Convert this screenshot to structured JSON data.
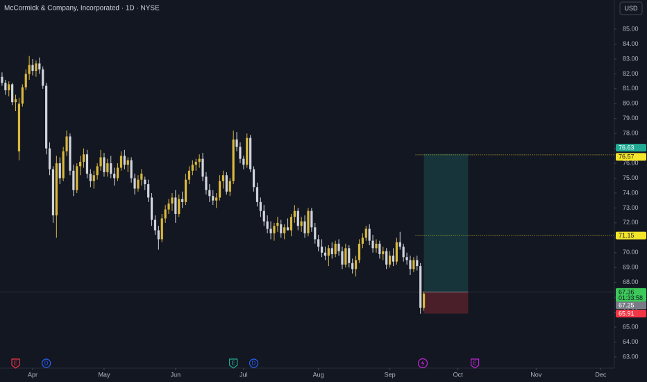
{
  "chart_data": {
    "type": "candlestick",
    "title": "McCormick & Company, Incorporated · 1D · NYSE",
    "currency": "USD",
    "up_color": "#d9b83c",
    "down_color": "#d1d4dc",
    "x": [
      0,
      1,
      2,
      3,
      4,
      5,
      6,
      7,
      8,
      9,
      10,
      11,
      12,
      13,
      14,
      15,
      16,
      17,
      18,
      19,
      20,
      21,
      22,
      23,
      24,
      25,
      26,
      27,
      28,
      29,
      30,
      31,
      32,
      33,
      34,
      35,
      36,
      37,
      38,
      39,
      40,
      41,
      42,
      43,
      44,
      45,
      46,
      47,
      48,
      49,
      50,
      51,
      52,
      53,
      54,
      55,
      56,
      57,
      58,
      59,
      60,
      61,
      62,
      63,
      64,
      65,
      66,
      67,
      68,
      69,
      70,
      71,
      72,
      73,
      74,
      75,
      76,
      77,
      78,
      79,
      80,
      81,
      82,
      83,
      84,
      85,
      86,
      87,
      88,
      89,
      90,
      91,
      92,
      93,
      94,
      95,
      96,
      97,
      98,
      99,
      100,
      101,
      102,
      103,
      104,
      105,
      106,
      107,
      108,
      109,
      110,
      111,
      112,
      113,
      114,
      115,
      116,
      117,
      118,
      119,
      120,
      121,
      122,
      123,
      124
    ],
    "open": [
      81.8,
      81.4,
      80.9,
      81.3,
      80.1,
      76.8,
      80.0,
      81.1,
      82.0,
      82.6,
      82.2,
      82.7,
      82.3,
      81.2,
      77.0,
      75.6,
      72.5,
      76.0,
      75.0,
      76.8,
      77.8,
      75.5,
      74.2,
      75.8,
      76.1,
      76.6,
      75.3,
      74.8,
      75.2,
      75.8,
      76.4,
      75.4,
      76.0,
      75.3,
      75.0,
      75.7,
      76.5,
      75.9,
      76.2,
      75.0,
      74.3,
      74.9,
      74.9,
      74.6,
      73.7,
      72.2,
      71.5,
      70.9,
      72.3,
      72.9,
      73.3,
      73.7,
      72.6,
      73.6,
      73.4,
      74.9,
      75.5,
      75.9,
      76.1,
      76.3,
      75.1,
      74.2,
      73.8,
      73.5,
      73.7,
      74.8,
      75.2,
      74.1,
      74.8,
      77.6,
      77.1,
      76.3,
      75.9,
      77.7,
      75.6,
      74.4,
      73.4,
      72.8,
      72.1,
      71.6,
      71.3,
      71.8,
      71.9,
      71.3,
      71.7,
      71.5,
      72.4,
      72.8,
      71.8,
      72.1,
      71.3,
      72.8,
      71.7,
      70.9,
      70.4,
      70.0,
      69.8,
      70.3,
      69.9,
      70.6,
      70.1,
      69.2,
      70.3,
      69.3,
      68.9,
      69.5,
      70.6,
      71.0,
      71.6,
      70.8,
      70.3,
      70.6,
      69.9,
      70.1,
      69.2,
      69.8,
      69.4,
      70.7,
      70.4,
      69.7,
      69.5,
      68.9,
      69.5,
      69.1,
      66.3
    ],
    "high": [
      82.1,
      81.6,
      81.5,
      81.4,
      80.6,
      80.4,
      81.3,
      82.3,
      83.2,
      83.0,
      82.9,
      83.1,
      82.5,
      81.4,
      77.4,
      75.8,
      76.5,
      76.4,
      77.1,
      78.2,
      78.0,
      75.9,
      76.0,
      76.5,
      77.0,
      76.9,
      75.6,
      75.5,
      76.0,
      76.9,
      76.7,
      76.3,
      76.5,
      75.7,
      76.0,
      76.8,
      76.9,
      76.4,
      76.4,
      75.3,
      75.2,
      75.6,
      75.1,
      74.9,
      74.0,
      72.5,
      71.8,
      72.6,
      73.2,
      73.6,
      74.0,
      74.2,
      73.9,
      74.1,
      75.3,
      75.8,
      76.2,
      76.3,
      76.6,
      76.7,
      75.4,
      74.6,
      74.2,
      74.0,
      75.2,
      75.5,
      75.4,
      75.0,
      78.2,
      78.1,
      77.4,
      76.5,
      78.0,
      77.9,
      75.8,
      74.7,
      73.7,
      73.2,
      72.5,
      72.1,
      72.0,
      72.4,
      72.2,
      71.9,
      72.3,
      72.6,
      73.2,
      73.0,
      72.4,
      72.5,
      73.0,
      73.0,
      72.0,
      71.2,
      70.9,
      70.4,
      70.5,
      70.7,
      70.8,
      70.9,
      70.4,
      70.6,
      70.5,
      69.6,
      69.8,
      70.9,
      71.3,
      71.8,
      71.9,
      71.2,
      70.9,
      70.8,
      70.4,
      70.3,
      70.1,
      70.3,
      71.0,
      71.4,
      70.6,
      70.0,
      69.8,
      69.7,
      69.8,
      69.3,
      67.4
    ],
    "low": [
      81.2,
      80.6,
      80.5,
      79.9,
      79.5,
      76.2,
      79.8,
      80.9,
      81.6,
      81.9,
      81.8,
      82.0,
      81.0,
      76.6,
      75.2,
      72.0,
      71.0,
      74.6,
      74.8,
      76.5,
      75.2,
      73.8,
      74.0,
      75.2,
      75.7,
      75.0,
      74.4,
      74.3,
      74.9,
      75.5,
      75.1,
      75.1,
      75.0,
      74.5,
      74.8,
      75.5,
      75.6,
      75.4,
      74.7,
      73.9,
      74.1,
      74.5,
      74.2,
      73.4,
      71.8,
      71.2,
      70.2,
      70.7,
      72.0,
      72.6,
      72.8,
      72.0,
      72.4,
      73.0,
      73.2,
      74.6,
      75.2,
      75.5,
      75.7,
      74.8,
      73.9,
      73.4,
      73.2,
      73.0,
      73.5,
      74.3,
      73.9,
      73.8,
      74.6,
      76.8,
      76.0,
      75.6,
      75.7,
      75.4,
      74.1,
      73.1,
      72.4,
      71.8,
      71.3,
      70.9,
      70.8,
      71.4,
      71.0,
      70.9,
      71.5,
      71.1,
      72.0,
      71.5,
      71.4,
      71.0,
      71.1,
      71.4,
      70.6,
      70.1,
      69.7,
      69.5,
      69.1,
      69.6,
      69.7,
      69.8,
      68.9,
      69.0,
      69.0,
      68.6,
      68.4,
      69.3,
      70.3,
      70.8,
      70.5,
      70.0,
      70.0,
      69.6,
      69.5,
      68.9,
      69.0,
      69.1,
      69.2,
      70.2,
      69.4,
      69.2,
      68.5,
      68.7,
      68.8,
      65.9,
      66.1
    ],
    "close": [
      81.4,
      80.9,
      81.3,
      80.1,
      80.3,
      80.0,
      81.1,
      82.0,
      82.6,
      82.2,
      82.7,
      82.3,
      81.2,
      77.0,
      75.6,
      72.5,
      76.0,
      75.0,
      76.8,
      77.8,
      75.5,
      74.2,
      75.8,
      76.1,
      76.6,
      75.3,
      74.8,
      75.2,
      75.8,
      76.4,
      75.4,
      76.0,
      75.3,
      75.0,
      75.7,
      76.5,
      75.9,
      76.2,
      75.0,
      74.3,
      74.9,
      75.3,
      74.6,
      73.7,
      72.2,
      71.5,
      70.9,
      72.3,
      72.9,
      73.3,
      73.7,
      72.6,
      73.6,
      73.4,
      74.9,
      75.5,
      75.9,
      76.1,
      76.3,
      75.1,
      74.2,
      73.8,
      73.5,
      73.7,
      74.8,
      75.2,
      74.1,
      74.8,
      77.6,
      77.1,
      76.3,
      75.9,
      77.7,
      75.6,
      74.4,
      73.4,
      72.8,
      72.1,
      71.6,
      71.3,
      71.8,
      72.0,
      71.3,
      71.7,
      71.5,
      72.4,
      72.8,
      71.8,
      72.1,
      71.3,
      72.8,
      71.7,
      70.9,
      70.4,
      70.0,
      69.8,
      70.3,
      69.9,
      70.6,
      70.1,
      69.2,
      70.3,
      69.3,
      68.9,
      69.5,
      70.6,
      71.0,
      71.6,
      70.8,
      70.3,
      70.6,
      69.9,
      70.1,
      69.2,
      69.8,
      69.4,
      70.7,
      70.4,
      69.7,
      69.5,
      68.9,
      69.5,
      69.1,
      66.3,
      67.25
    ],
    "xlim": [
      -0.6,
      180
    ],
    "xticks": [
      {
        "value": 9,
        "label": "Apr"
      },
      {
        "value": 30,
        "label": "May"
      },
      {
        "value": 51,
        "label": "Jun"
      },
      {
        "value": 71,
        "label": "Jul"
      },
      {
        "value": 93,
        "label": "Aug"
      },
      {
        "value": 114,
        "label": "Sep"
      },
      {
        "value": 134,
        "label": "Oct"
      },
      {
        "value": 157,
        "label": "Nov"
      },
      {
        "value": 176,
        "label": "Dec"
      }
    ],
    "ylim": [
      62.25,
      86.96
    ],
    "yticks": [
      {
        "value": 63,
        "label": "63.00"
      },
      {
        "value": 64,
        "label": "64.00"
      },
      {
        "value": 65,
        "label": "65.00"
      },
      {
        "value": 66,
        "label": "66.00"
      },
      {
        "value": 67,
        "label": "67.00"
      },
      {
        "value": 68,
        "label": "68.00"
      },
      {
        "value": 69,
        "label": "69.00"
      },
      {
        "value": 70,
        "label": "70.00"
      },
      {
        "value": 71,
        "label": "71.00"
      },
      {
        "value": 72,
        "label": "72.00"
      },
      {
        "value": 73,
        "label": "73.00"
      },
      {
        "value": 74,
        "label": "74.00"
      },
      {
        "value": 75,
        "label": "75.00"
      },
      {
        "value": 76,
        "label": "76.00"
      },
      {
        "value": 77,
        "label": "77.00"
      },
      {
        "value": 78,
        "label": "78.00"
      },
      {
        "value": 79,
        "label": "79.00"
      },
      {
        "value": 80,
        "label": "80.00"
      },
      {
        "value": 81,
        "label": "81.00"
      },
      {
        "value": 82,
        "label": "82.00"
      },
      {
        "value": 83,
        "label": "83.00"
      },
      {
        "value": 84,
        "label": "84.00"
      },
      {
        "value": 85,
        "label": "85.00"
      }
    ],
    "position": {
      "start": 124,
      "end": 137,
      "target": 76.63,
      "entry": 67.36,
      "stop": 65.91,
      "countdown": "01:33:58",
      "target_color": "#22ab94",
      "entry_color": "#3cc95a",
      "stop_color": "#f23645"
    },
    "levels": [
      76.57,
      71.15
    ],
    "level_color": "#f5e52a",
    "last_color": "#787b86",
    "events": [
      {
        "label": "E",
        "x": 4,
        "color": "#f23645"
      },
      {
        "label": "D",
        "x": 13,
        "color": "#2962ff"
      },
      {
        "label": "E",
        "x": 68,
        "color": "#22ab94"
      },
      {
        "label": "D",
        "x": 74,
        "color": "#2962ff"
      },
      {
        "label": "E",
        "x": 139,
        "color": "#c026d3"
      }
    ]
  }
}
